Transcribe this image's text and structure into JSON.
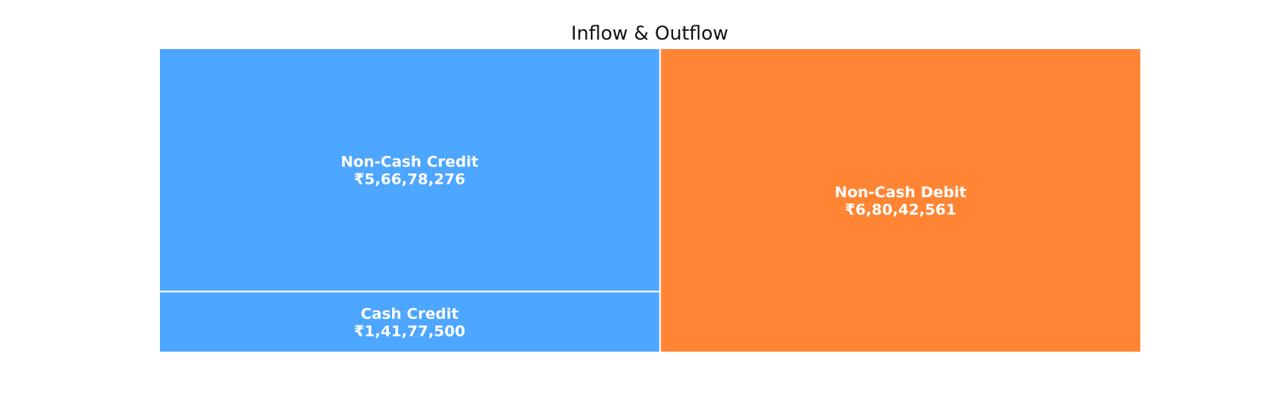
{
  "chart_data": {
    "type": "treemap",
    "title": "Inflow & Outflow",
    "currency_symbol": "₹",
    "groups": [
      {
        "name": "Inflow",
        "color": "#4DA6FF",
        "items": [
          {
            "label": "Non-Cash Credit",
            "value": 56678276,
            "display_value": "₹5,66,78,276"
          },
          {
            "label": "Cash Credit",
            "value": 14177500,
            "display_value": "₹1,41,77,500"
          }
        ]
      },
      {
        "name": "Outflow",
        "color": "#FF8534",
        "items": [
          {
            "label": "Non-Cash Debit",
            "value": 68042561,
            "display_value": "₹6,80,42,561"
          }
        ]
      }
    ],
    "border_color": "#ffffff",
    "label_color": "#ffffff"
  }
}
